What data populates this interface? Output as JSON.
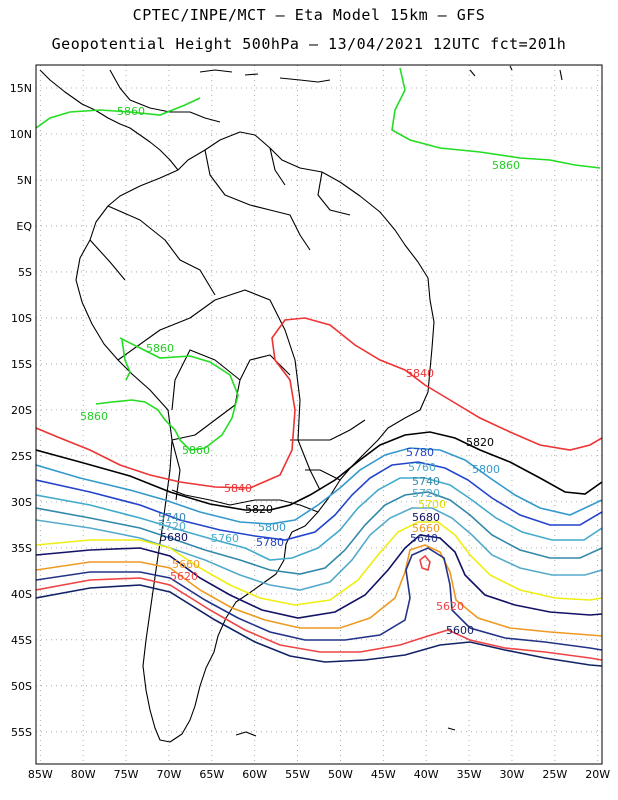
{
  "title": {
    "line1": "CPTEC/INPE/MCT –  Eta Model 15km – GFS",
    "line2": "Geopotential Height 500hPa – 13/04/2021 12UTC fct=201h"
  },
  "axes": {
    "lon_labels": [
      "85W",
      "80W",
      "75W",
      "70W",
      "65W",
      "60W",
      "55W",
      "50W",
      "45W",
      "40W",
      "35W",
      "30W",
      "25W",
      "20W"
    ],
    "lat_labels": [
      "15N",
      "10N",
      "5N",
      "EQ",
      "5S",
      "10S",
      "15S",
      "20S",
      "25S",
      "30S",
      "35S",
      "40S",
      "45S",
      "50S",
      "55S"
    ],
    "lon_range": [
      -85.5,
      -19.5
    ],
    "lat_range": [
      17.5,
      -58.5
    ],
    "grid": "dotted"
  },
  "contours": [
    {
      "value": "5860",
      "color": "#22dd22"
    },
    {
      "value": "5840",
      "color": "#ee3333"
    },
    {
      "value": "5820",
      "color": "#000000"
    },
    {
      "value": "5800",
      "color": "#3399cc"
    },
    {
      "value": "5780",
      "color": "#2244cc"
    },
    {
      "value": "5760",
      "color": "#44aacc"
    },
    {
      "value": "5740",
      "color": "#3388aa"
    },
    {
      "value": "5720",
      "color": "#55aacc"
    },
    {
      "value": "5700",
      "color": "#eeee11"
    },
    {
      "value": "5680",
      "color": "#111166"
    },
    {
      "value": "5660",
      "color": "#ee9922"
    },
    {
      "value": "5640",
      "color": "#223388"
    },
    {
      "value": "5620",
      "color": "#ee4444"
    },
    {
      "value": "5600",
      "color": "#112266"
    }
  ],
  "labels": [
    {
      "text": "5860",
      "color": "#22cc22"
    },
    {
      "text": "5860",
      "color": "#22cc22"
    },
    {
      "text": "5860",
      "color": "#22cc22"
    },
    {
      "text": "5860",
      "color": "#22cc22"
    },
    {
      "text": "5860",
      "color": "#22cc22"
    },
    {
      "text": "5840",
      "color": "#ee3333"
    },
    {
      "text": "5840",
      "color": "#ee3333"
    },
    {
      "text": "5820",
      "color": "#000000"
    },
    {
      "text": "5820",
      "color": "#000000"
    },
    {
      "text": "5800",
      "color": "#3399cc"
    },
    {
      "text": "5800",
      "color": "#3399cc"
    },
    {
      "text": "5780",
      "color": "#2244cc"
    },
    {
      "text": "5780",
      "color": "#2244cc"
    },
    {
      "text": "5760",
      "color": "#44aacc"
    },
    {
      "text": "5760",
      "color": "#44aacc"
    },
    {
      "text": "5740",
      "color": "#3388aa"
    },
    {
      "text": "5740",
      "color": "#3388aa"
    },
    {
      "text": "5720",
      "color": "#55aacc"
    },
    {
      "text": "5720",
      "color": "#55aacc"
    },
    {
      "text": "5700",
      "color": "#dddd00"
    },
    {
      "text": "5680",
      "color": "#111166"
    },
    {
      "text": "5660",
      "color": "#ee9922"
    },
    {
      "text": "5660",
      "color": "#ee9922"
    },
    {
      "text": "5640",
      "color": "#223388"
    },
    {
      "text": "5620",
      "color": "#ee4444"
    },
    {
      "text": "5600",
      "color": "#112266"
    },
    {
      "text": "5680",
      "color": "#111166"
    },
    {
      "text": "5620",
      "color": "#ee4444"
    }
  ]
}
